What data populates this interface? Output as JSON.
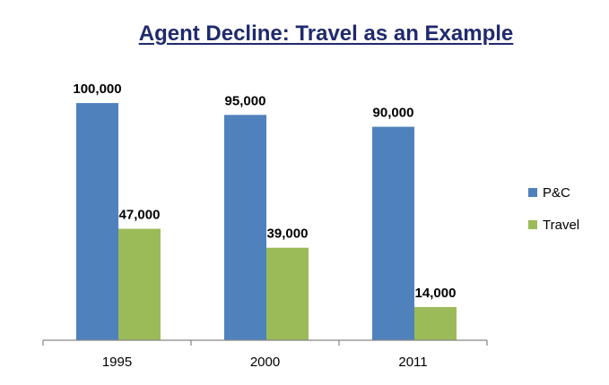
{
  "chart_data": {
    "type": "bar",
    "title": "Agent Decline: Travel as an Example",
    "categories": [
      "1995",
      "2000",
      "2011"
    ],
    "series": [
      {
        "name": "P&C",
        "values": [
          100000,
          95000,
          90000
        ],
        "labels": [
          "100,000",
          "95,000",
          "90,000"
        ],
        "color": "#4f81bd"
      },
      {
        "name": "Travel",
        "values": [
          47000,
          39000,
          14000
        ],
        "labels": [
          "47,000",
          "39,000",
          "14,000"
        ],
        "color": "#9bbb59"
      }
    ],
    "ylim": [
      0,
      114000
    ],
    "grid": false,
    "legend": "right"
  }
}
